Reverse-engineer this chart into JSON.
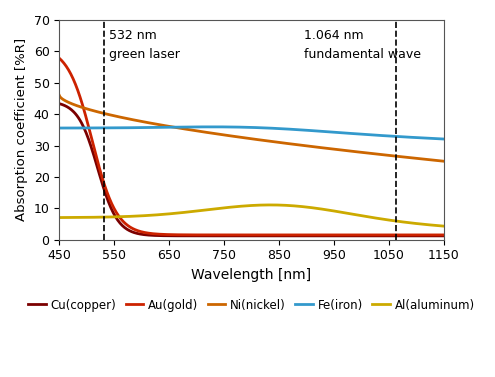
{
  "title": "",
  "xlabel": "Wavelength [nm]",
  "ylabel": "Absorption coefficient [%R]",
  "xlim": [
    450,
    1150
  ],
  "ylim": [
    0,
    70
  ],
  "yticks": [
    0,
    10,
    20,
    30,
    40,
    50,
    60,
    70
  ],
  "xticks": [
    450,
    550,
    650,
    750,
    850,
    950,
    1050,
    1150
  ],
  "vline1": 532,
  "vline2": 1064,
  "vline1_label1": "532 nm",
  "vline1_label2": "green laser",
  "vline2_label1": "1.064 nm",
  "vline2_label2": "fundamental wave",
  "background_color": "#ffffff",
  "border_color": "#888888",
  "materials": [
    "Cu(copper)",
    "Au(gold)",
    "Ni(nickel)",
    "Fe(iron)",
    "Al(aluminum)"
  ],
  "colors": {
    "Cu": "#7B0000",
    "Au": "#CC2200",
    "Ni": "#CC6600",
    "Fe": "#3399CC",
    "Al": "#CCAA00"
  }
}
